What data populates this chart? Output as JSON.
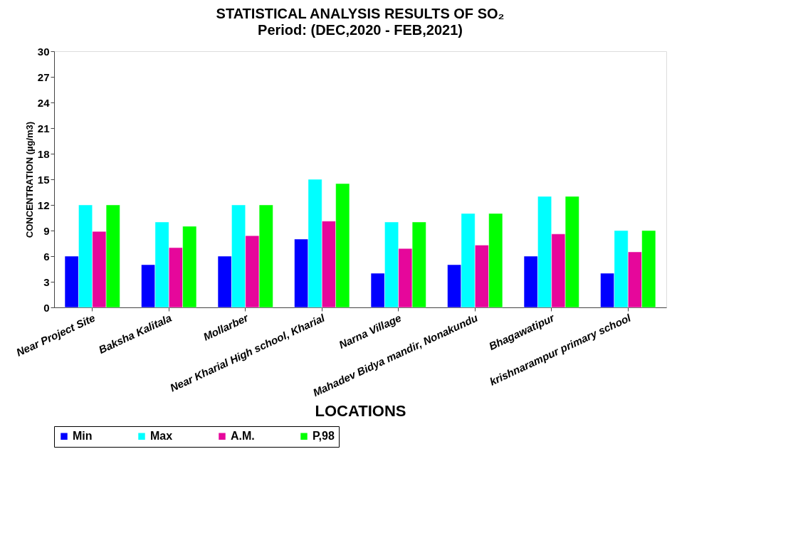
{
  "chart_data": {
    "type": "bar",
    "title": "STATISTICAL ANALYSIS RESULTS OF SO₂",
    "subtitle": "Period: (DEC,2020 - FEB,2021)",
    "xlabel": "LOCATIONS",
    "ylabel": "CONCENTRATION (µg/m3)",
    "categories": [
      "Near Project Site",
      "Baksha Kalitala",
      "Mollarber",
      "Near Kharial High school, Kharial",
      "Narna Village",
      "Mahadev Bidya mandir, Nonakundu",
      "Bhagawatipur",
      "krishnarampur primary school"
    ],
    "series": [
      {
        "name": "Min",
        "color": "#0000ff",
        "values": [
          6,
          5,
          6,
          8,
          4,
          5,
          6,
          4
        ]
      },
      {
        "name": "Max",
        "color": "#00ffff",
        "values": [
          12,
          10,
          12,
          15,
          10,
          11,
          13,
          9
        ]
      },
      {
        "name": "A.M.",
        "color": "#e6079b",
        "values": [
          8.9,
          7.0,
          8.4,
          10.1,
          6.9,
          7.3,
          8.6,
          6.5
        ]
      },
      {
        "name": "P,98",
        "color": "#00ff00",
        "values": [
          12,
          9.5,
          12,
          14.5,
          10,
          11,
          13,
          9
        ]
      }
    ],
    "ylim": [
      0,
      30
    ],
    "yticks": [
      0,
      3,
      6,
      9,
      12,
      15,
      18,
      21,
      24,
      27,
      30
    ],
    "grid": false,
    "legend": "bottom"
  }
}
